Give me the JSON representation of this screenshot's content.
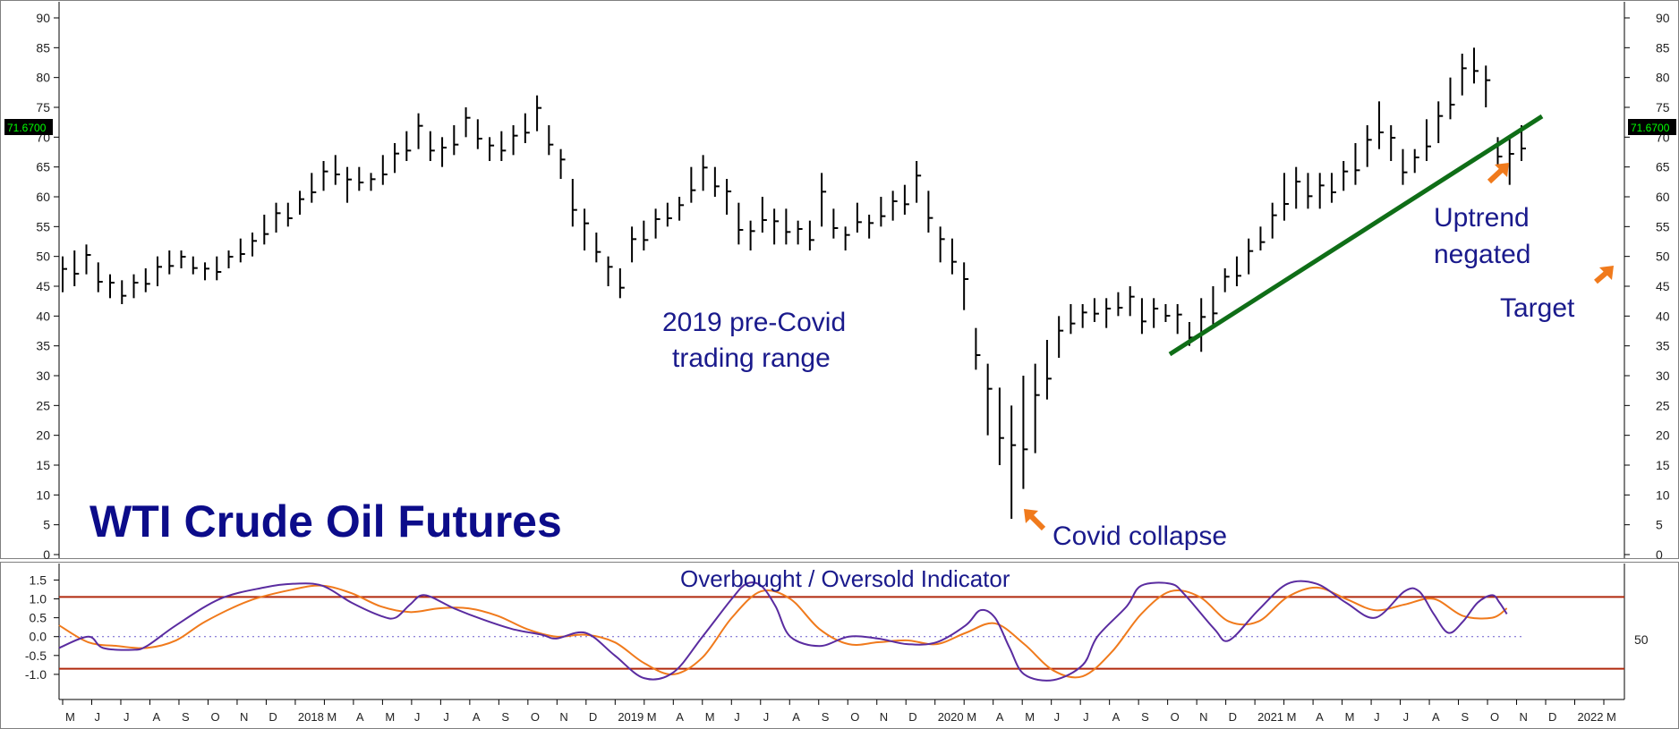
{
  "chart_data": [
    {
      "type": "ohlc",
      "title": "WTI Crude Oil Futures",
      "ylim": [
        0,
        90
      ],
      "y_ticks": [
        0,
        5,
        10,
        15,
        20,
        25,
        30,
        35,
        40,
        45,
        50,
        55,
        60,
        65,
        70,
        75,
        80,
        85,
        90
      ],
      "last_price": "71.6700",
      "x_months": [
        "M",
        "J",
        "J",
        "A",
        "S",
        "O",
        "N",
        "D",
        "2018",
        "M",
        "A",
        "M",
        "J",
        "J",
        "A",
        "S",
        "O",
        "N",
        "D",
        "2019",
        "M",
        "A",
        "M",
        "J",
        "J",
        "A",
        "S",
        "O",
        "N",
        "D",
        "2020",
        "M",
        "A",
        "M",
        "J",
        "J",
        "A",
        "S",
        "O",
        "N",
        "D",
        "2021",
        "M",
        "A",
        "M",
        "J",
        "J",
        "A",
        "S",
        "O",
        "N",
        "D",
        "2022",
        "M"
      ],
      "weekly_ranges": [
        [
          44,
          50
        ],
        [
          45,
          51
        ],
        [
          47,
          52
        ],
        [
          44,
          49
        ],
        [
          43,
          47
        ],
        [
          42,
          46
        ],
        [
          43,
          47
        ],
        [
          44,
          48
        ],
        [
          45,
          50
        ],
        [
          47,
          51
        ],
        [
          48,
          51
        ],
        [
          47,
          50
        ],
        [
          46,
          49
        ],
        [
          46,
          50
        ],
        [
          48,
          51
        ],
        [
          49,
          53
        ],
        [
          50,
          54
        ],
        [
          52,
          57
        ],
        [
          54,
          59
        ],
        [
          55,
          59
        ],
        [
          57,
          61
        ],
        [
          59,
          64
        ],
        [
          61,
          66
        ],
        [
          62,
          67
        ],
        [
          59,
          65
        ],
        [
          61,
          65
        ],
        [
          61,
          64
        ],
        [
          62,
          67
        ],
        [
          64,
          69
        ],
        [
          66,
          71
        ],
        [
          68,
          74
        ],
        [
          66,
          71
        ],
        [
          65,
          70
        ],
        [
          67,
          72
        ],
        [
          70,
          75
        ],
        [
          68,
          73
        ],
        [
          66,
          70
        ],
        [
          66,
          71
        ],
        [
          67,
          72
        ],
        [
          69,
          74
        ],
        [
          71,
          77
        ],
        [
          67,
          72
        ],
        [
          63,
          68
        ],
        [
          55,
          63
        ],
        [
          51,
          58
        ],
        [
          49,
          54
        ],
        [
          45,
          50
        ],
        [
          43,
          48
        ],
        [
          49,
          55
        ],
        [
          51,
          56
        ],
        [
          53,
          58
        ],
        [
          55,
          59
        ],
        [
          56,
          60
        ],
        [
          59,
          65
        ],
        [
          61,
          67
        ],
        [
          60,
          65
        ],
        [
          57,
          63
        ],
        [
          52,
          59
        ],
        [
          51,
          56
        ],
        [
          54,
          60
        ],
        [
          52,
          58
        ],
        [
          52,
          58
        ],
        [
          52,
          56
        ],
        [
          51,
          56
        ],
        [
          55,
          64
        ],
        [
          53,
          58
        ],
        [
          51,
          55
        ],
        [
          54,
          59
        ],
        [
          53,
          57
        ],
        [
          55,
          60
        ],
        [
          56,
          61
        ],
        [
          57,
          62
        ],
        [
          59,
          66
        ],
        [
          54,
          61
        ],
        [
          49,
          55
        ],
        [
          47,
          53
        ],
        [
          41,
          49
        ],
        [
          31,
          38
        ],
        [
          20,
          32
        ],
        [
          15,
          28
        ],
        [
          6,
          25
        ],
        [
          11,
          30
        ],
        [
          17,
          32
        ],
        [
          26,
          36
        ],
        [
          33,
          40
        ],
        [
          37,
          42
        ],
        [
          38,
          42
        ],
        [
          39,
          43
        ],
        [
          38,
          43
        ],
        [
          40,
          44
        ],
        [
          40,
          45
        ],
        [
          37,
          43
        ],
        [
          38,
          43
        ],
        [
          39,
          42
        ],
        [
          37,
          42
        ],
        [
          35,
          39
        ],
        [
          34,
          43
        ],
        [
          38,
          45
        ],
        [
          44,
          48
        ],
        [
          45,
          50
        ],
        [
          47,
          53
        ],
        [
          51,
          55
        ],
        [
          53,
          59
        ],
        [
          56,
          64
        ],
        [
          58,
          65
        ],
        [
          58,
          64
        ],
        [
          58,
          64
        ],
        [
          59,
          64
        ],
        [
          61,
          66
        ],
        [
          62,
          69
        ],
        [
          65,
          72
        ],
        [
          68,
          76
        ],
        [
          66,
          72
        ],
        [
          62,
          68
        ],
        [
          64,
          68
        ],
        [
          66,
          73
        ],
        [
          69,
          76
        ],
        [
          73,
          80
        ],
        [
          77,
          84
        ],
        [
          79,
          85
        ],
        [
          75,
          82
        ],
        [
          65,
          70
        ],
        [
          62,
          70
        ],
        [
          66,
          72
        ]
      ]
    },
    {
      "type": "line",
      "title": "Overbought / Oversold Indicator",
      "ylim": [
        -1.5,
        1.7
      ],
      "y_ticks": [
        "1.5",
        "1.0",
        "0.5",
        "0.0",
        "-0.5",
        "-1.0"
      ],
      "right_tick": "50",
      "upper_band": 1.05,
      "lower_band": -0.85,
      "zero_line": 0.0,
      "series": [
        {
          "color": "#5a2ca0",
          "points": [
            [
              0,
              -0.3
            ],
            [
              0.02,
              0.0
            ],
            [
              0.03,
              -0.3
            ],
            [
              0.05,
              -0.35
            ],
            [
              0.06,
              -0.25
            ],
            [
              0.08,
              0.3
            ],
            [
              0.11,
              1.0
            ],
            [
              0.14,
              1.3
            ],
            [
              0.16,
              1.4
            ],
            [
              0.18,
              1.35
            ],
            [
              0.2,
              0.9
            ],
            [
              0.22,
              0.55
            ],
            [
              0.23,
              0.5
            ],
            [
              0.24,
              0.85
            ],
            [
              0.25,
              1.1
            ],
            [
              0.27,
              0.75
            ],
            [
              0.29,
              0.45
            ],
            [
              0.31,
              0.2
            ],
            [
              0.33,
              0.05
            ],
            [
              0.34,
              -0.05
            ],
            [
              0.36,
              0.1
            ],
            [
              0.38,
              -0.5
            ],
            [
              0.4,
              -1.1
            ],
            [
              0.42,
              -0.95
            ],
            [
              0.44,
              0.0
            ],
            [
              0.46,
              1.0
            ],
            [
              0.47,
              1.4
            ],
            [
              0.48,
              1.35
            ],
            [
              0.49,
              0.8
            ],
            [
              0.5,
              0.0
            ],
            [
              0.52,
              -0.25
            ],
            [
              0.54,
              0.0
            ],
            [
              0.56,
              -0.05
            ],
            [
              0.58,
              -0.2
            ],
            [
              0.6,
              -0.15
            ],
            [
              0.62,
              0.3
            ],
            [
              0.63,
              0.7
            ],
            [
              0.64,
              0.5
            ],
            [
              0.65,
              -0.3
            ],
            [
              0.66,
              -1.0
            ],
            [
              0.68,
              -1.15
            ],
            [
              0.7,
              -0.75
            ],
            [
              0.71,
              0.0
            ],
            [
              0.73,
              0.8
            ],
            [
              0.74,
              1.35
            ],
            [
              0.76,
              1.4
            ],
            [
              0.77,
              1.1
            ],
            [
              0.79,
              0.2
            ],
            [
              0.8,
              -0.1
            ],
            [
              0.82,
              0.7
            ],
            [
              0.84,
              1.4
            ],
            [
              0.86,
              1.4
            ],
            [
              0.88,
              0.9
            ],
            [
              0.9,
              0.5
            ],
            [
              0.92,
              1.2
            ],
            [
              0.93,
              1.2
            ],
            [
              0.94,
              0.6
            ],
            [
              0.95,
              0.1
            ],
            [
              0.96,
              0.4
            ],
            [
              0.97,
              0.9
            ],
            [
              0.98,
              1.1
            ],
            [
              0.985,
              0.9
            ],
            [
              0.99,
              0.6
            ]
          ]
        },
        {
          "color": "#f07a1c",
          "points": [
            [
              0,
              0.3
            ],
            [
              0.02,
              -0.15
            ],
            [
              0.04,
              -0.25
            ],
            [
              0.06,
              -0.3
            ],
            [
              0.08,
              -0.1
            ],
            [
              0.1,
              0.4
            ],
            [
              0.13,
              0.95
            ],
            [
              0.16,
              1.25
            ],
            [
              0.18,
              1.35
            ],
            [
              0.2,
              1.15
            ],
            [
              0.22,
              0.8
            ],
            [
              0.24,
              0.65
            ],
            [
              0.26,
              0.75
            ],
            [
              0.28,
              0.75
            ],
            [
              0.3,
              0.55
            ],
            [
              0.32,
              0.2
            ],
            [
              0.34,
              0.0
            ],
            [
              0.36,
              0.05
            ],
            [
              0.38,
              -0.15
            ],
            [
              0.4,
              -0.7
            ],
            [
              0.42,
              -1.0
            ],
            [
              0.44,
              -0.55
            ],
            [
              0.46,
              0.5
            ],
            [
              0.48,
              1.2
            ],
            [
              0.5,
              1.0
            ],
            [
              0.52,
              0.2
            ],
            [
              0.54,
              -0.2
            ],
            [
              0.56,
              -0.15
            ],
            [
              0.58,
              -0.1
            ],
            [
              0.6,
              -0.2
            ],
            [
              0.62,
              0.1
            ],
            [
              0.64,
              0.35
            ],
            [
              0.66,
              -0.2
            ],
            [
              0.68,
              -0.9
            ],
            [
              0.7,
              -1.05
            ],
            [
              0.72,
              -0.4
            ],
            [
              0.74,
              0.6
            ],
            [
              0.76,
              1.2
            ],
            [
              0.78,
              1.05
            ],
            [
              0.8,
              0.4
            ],
            [
              0.82,
              0.4
            ],
            [
              0.84,
              1.05
            ],
            [
              0.86,
              1.3
            ],
            [
              0.88,
              1.0
            ],
            [
              0.9,
              0.7
            ],
            [
              0.92,
              0.85
            ],
            [
              0.94,
              1.0
            ],
            [
              0.96,
              0.55
            ],
            [
              0.98,
              0.5
            ],
            [
              0.99,
              0.75
            ]
          ]
        }
      ]
    }
  ],
  "annotations": {
    "pre_covid_line1": "2019 pre-Covid",
    "pre_covid_line2": "trading range",
    "covid_collapse": "Covid collapse",
    "uptrend_line1": "Uptrend",
    "uptrend_line2": "negated",
    "target": "Target"
  },
  "colors": {
    "bars": "#000000",
    "trendline": "#0f6e17",
    "arrows": "#f07a1c",
    "bands": "#b0280c",
    "annotation_text": "#1a1a8c",
    "title_text": "#0c0c8a",
    "price_tag_bg": "#000000",
    "price_tag_text": "#00ff00"
  }
}
